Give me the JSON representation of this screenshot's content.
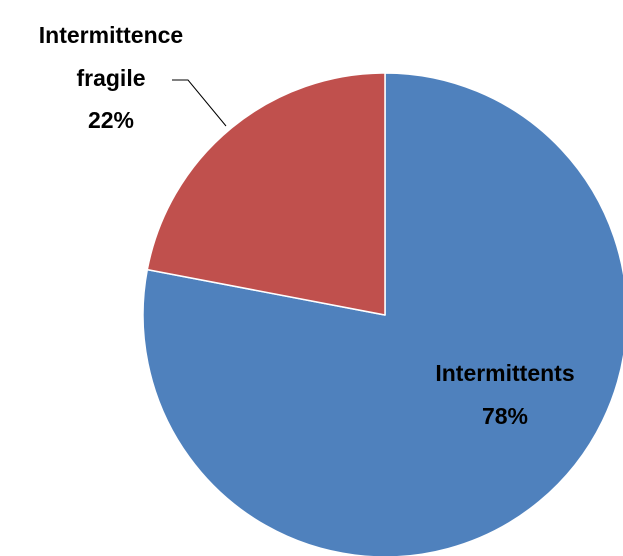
{
  "chart_data": {
    "type": "pie",
    "start_angle_deg": 0,
    "direction": "clockwise",
    "legend": "none",
    "slices": [
      {
        "name": "Intermittents",
        "value": 78,
        "label_text": "78%",
        "color": "#4F81BD"
      },
      {
        "name": "Intermittence fragile",
        "value": 22,
        "label_text": "22%",
        "color": "#C0504D"
      }
    ]
  }
}
